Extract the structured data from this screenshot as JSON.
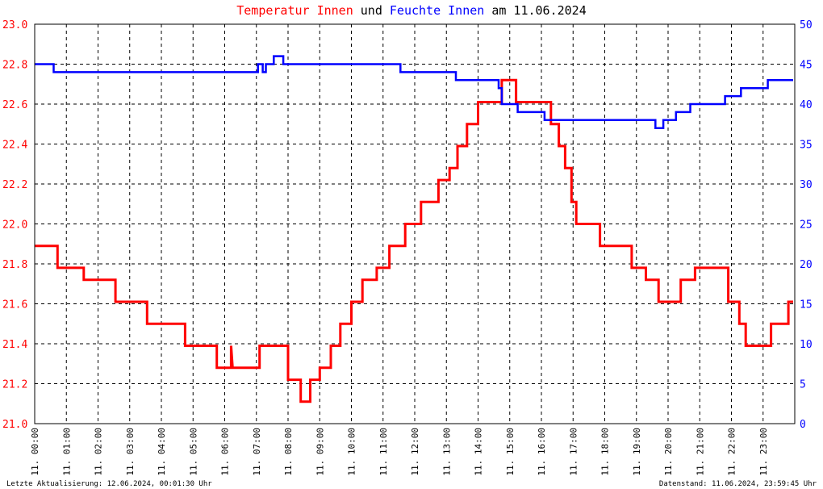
{
  "title": {
    "parts": [
      {
        "text": "Temperatur Innen",
        "color": "#ff0000"
      },
      {
        "text": " und ",
        "color": "#000000"
      },
      {
        "text": "Feuchte Innen",
        "color": "#0000ff"
      },
      {
        "text": " am 11.06.2024",
        "color": "#000000"
      }
    ]
  },
  "footer": {
    "left": "Letzte Aktualisierung: 12.06.2024, 00:01:30 Uhr",
    "right": "Datenstand: 11.06.2024, 23:59:45 Uhr"
  },
  "chart_data": {
    "type": "line",
    "grid": true,
    "x_range": [
      0,
      24
    ],
    "x_tick_labels": [
      "11. 00:00",
      "11. 01:00",
      "11. 02:00",
      "11. 03:00",
      "11. 04:00",
      "11. 05:00",
      "11. 06:00",
      "11. 07:00",
      "11. 08:00",
      "11. 09:00",
      "11. 10:00",
      "11. 11:00",
      "11. 12:00",
      "11. 13:00",
      "11. 14:00",
      "11. 15:00",
      "11. 16:00",
      "11. 17:00",
      "11. 18:00",
      "11. 19:00",
      "11. 20:00",
      "11. 21:00",
      "11. 22:00",
      "11. 23:00"
    ],
    "y_left": {
      "range": [
        21.0,
        23.0
      ],
      "ticks": [
        "21.0",
        "21.2",
        "21.4",
        "21.6",
        "21.8",
        "22.0",
        "22.2",
        "22.4",
        "22.6",
        "22.8",
        "23.0"
      ],
      "color": "#ff0000"
    },
    "y_right": {
      "range": [
        0,
        50
      ],
      "ticks": [
        "0",
        "5",
        "10",
        "15",
        "20",
        "25",
        "30",
        "35",
        "40",
        "45",
        "50"
      ],
      "color": "#0000ff"
    },
    "series": [
      {
        "name": "Temperatur Innen",
        "axis": "left",
        "color": "#ff0000",
        "points": [
          [
            0,
            21.89
          ],
          [
            0.72,
            21.89
          ],
          [
            0.72,
            21.78
          ],
          [
            1.55,
            21.78
          ],
          [
            1.55,
            21.72
          ],
          [
            2.55,
            21.72
          ],
          [
            2.55,
            21.61
          ],
          [
            3.55,
            21.61
          ],
          [
            3.55,
            21.5
          ],
          [
            4.75,
            21.5
          ],
          [
            4.75,
            21.39
          ],
          [
            5.75,
            21.39
          ],
          [
            5.75,
            21.28
          ],
          [
            6.2,
            21.28
          ],
          [
            6.2,
            21.39
          ],
          [
            6.25,
            21.28
          ],
          [
            7.1,
            21.28
          ],
          [
            7.1,
            21.39
          ],
          [
            8.0,
            21.39
          ],
          [
            8.0,
            21.22
          ],
          [
            8.4,
            21.22
          ],
          [
            8.4,
            21.11
          ],
          [
            8.7,
            21.11
          ],
          [
            8.7,
            21.22
          ],
          [
            9.0,
            21.22
          ],
          [
            9.0,
            21.28
          ],
          [
            9.35,
            21.28
          ],
          [
            9.35,
            21.39
          ],
          [
            9.65,
            21.39
          ],
          [
            9.65,
            21.5
          ],
          [
            10.0,
            21.5
          ],
          [
            10.0,
            21.61
          ],
          [
            10.35,
            21.61
          ],
          [
            10.35,
            21.72
          ],
          [
            10.8,
            21.72
          ],
          [
            10.8,
            21.78
          ],
          [
            11.2,
            21.78
          ],
          [
            11.2,
            21.89
          ],
          [
            11.7,
            21.89
          ],
          [
            11.7,
            22.0
          ],
          [
            12.2,
            22.0
          ],
          [
            12.2,
            22.11
          ],
          [
            12.75,
            22.11
          ],
          [
            12.75,
            22.22
          ],
          [
            13.1,
            22.22
          ],
          [
            13.1,
            22.28
          ],
          [
            13.35,
            22.28
          ],
          [
            13.35,
            22.39
          ],
          [
            13.65,
            22.39
          ],
          [
            13.65,
            22.5
          ],
          [
            14.0,
            22.5
          ],
          [
            14.0,
            22.61
          ],
          [
            14.75,
            22.61
          ],
          [
            14.75,
            22.72
          ],
          [
            15.2,
            22.72
          ],
          [
            15.2,
            22.61
          ],
          [
            16.3,
            22.61
          ],
          [
            16.3,
            22.5
          ],
          [
            16.55,
            22.5
          ],
          [
            16.55,
            22.39
          ],
          [
            16.75,
            22.39
          ],
          [
            16.75,
            22.28
          ],
          [
            16.95,
            22.28
          ],
          [
            16.95,
            22.11
          ],
          [
            17.1,
            22.11
          ],
          [
            17.1,
            22.0
          ],
          [
            17.85,
            22.0
          ],
          [
            17.85,
            21.89
          ],
          [
            18.85,
            21.89
          ],
          [
            18.85,
            21.78
          ],
          [
            19.3,
            21.78
          ],
          [
            19.3,
            21.72
          ],
          [
            19.7,
            21.72
          ],
          [
            19.7,
            21.61
          ],
          [
            20.4,
            21.61
          ],
          [
            20.4,
            21.72
          ],
          [
            20.85,
            21.72
          ],
          [
            20.85,
            21.78
          ],
          [
            21.9,
            21.78
          ],
          [
            21.9,
            21.61
          ],
          [
            22.25,
            21.61
          ],
          [
            22.25,
            21.5
          ],
          [
            22.45,
            21.5
          ],
          [
            22.45,
            21.39
          ],
          [
            23.25,
            21.39
          ],
          [
            23.25,
            21.5
          ],
          [
            23.8,
            21.5
          ],
          [
            23.8,
            21.61
          ],
          [
            23.95,
            21.61
          ]
        ]
      },
      {
        "name": "Feuchte Innen",
        "axis": "right",
        "color": "#0000ff",
        "points": [
          [
            0,
            45
          ],
          [
            0.6,
            45
          ],
          [
            0.6,
            44
          ],
          [
            7.05,
            44
          ],
          [
            7.05,
            45
          ],
          [
            7.2,
            45
          ],
          [
            7.2,
            44
          ],
          [
            7.3,
            44
          ],
          [
            7.3,
            45
          ],
          [
            7.55,
            45
          ],
          [
            7.55,
            46
          ],
          [
            7.85,
            46
          ],
          [
            7.85,
            45
          ],
          [
            11.55,
            45
          ],
          [
            11.55,
            44
          ],
          [
            13.3,
            44
          ],
          [
            13.3,
            43
          ],
          [
            14.65,
            43
          ],
          [
            14.65,
            42
          ],
          [
            14.75,
            42
          ],
          [
            14.75,
            40
          ],
          [
            15.25,
            40
          ],
          [
            15.25,
            39
          ],
          [
            16.1,
            39
          ],
          [
            16.1,
            38
          ],
          [
            19.6,
            38
          ],
          [
            19.6,
            37
          ],
          [
            19.85,
            37
          ],
          [
            19.85,
            38
          ],
          [
            20.25,
            38
          ],
          [
            20.25,
            39
          ],
          [
            20.7,
            39
          ],
          [
            20.7,
            40
          ],
          [
            21.8,
            40
          ],
          [
            21.8,
            41
          ],
          [
            22.3,
            41
          ],
          [
            22.3,
            42
          ],
          [
            23.15,
            42
          ],
          [
            23.15,
            43
          ],
          [
            23.95,
            43
          ]
        ]
      }
    ]
  }
}
